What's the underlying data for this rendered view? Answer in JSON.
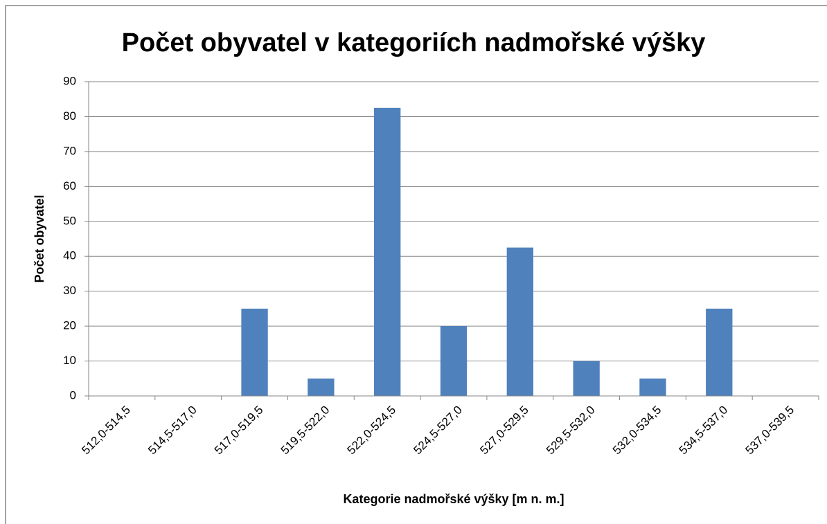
{
  "chart_data": {
    "type": "bar",
    "title": "Počet obyvatel v kategoriích nadmořské výšky",
    "x_label": "Kategorie nadmořské výšky [m n. m.]",
    "y_label": "Počet obyvatel",
    "categories": [
      "512,0-514,5",
      "514,5-517,0",
      "517,0-519,5",
      "519,5-522,0",
      "522,0-524,5",
      "524,5-527,0",
      "527,0-529,5",
      "529,5-532,0",
      "532,0-534,5",
      "534,5-537,0",
      "537,0-539,5"
    ],
    "values": [
      0,
      0,
      25,
      5,
      82.5,
      20,
      42.5,
      10,
      5,
      25,
      0
    ],
    "color": "#4f81bd",
    "ylim": [
      0,
      90
    ],
    "yticks": [
      0,
      10,
      20,
      30,
      40,
      50,
      60,
      70,
      80,
      90
    ],
    "grid": true
  }
}
